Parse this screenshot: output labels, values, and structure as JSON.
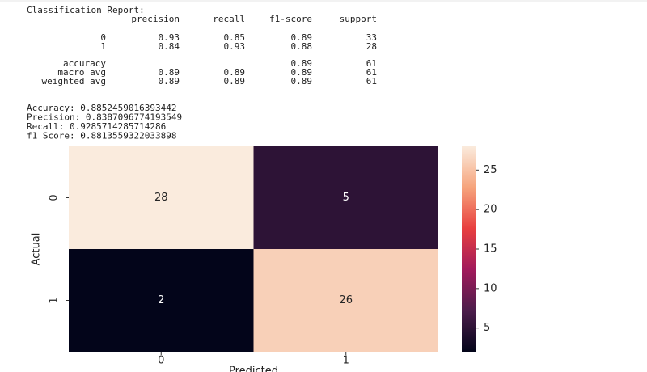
{
  "report": {
    "title": "Classification Report:",
    "columns": [
      "precision",
      "recall",
      "f1-score",
      "support"
    ],
    "rows": [
      {
        "label": "0",
        "values": [
          0.93,
          0.85,
          0.89,
          33
        ]
      },
      {
        "label": "1",
        "values": [
          0.84,
          0.93,
          0.88,
          28
        ]
      },
      {
        "label": "accuracy",
        "values": [
          null,
          null,
          0.89,
          61
        ]
      },
      {
        "label": "macro avg",
        "values": [
          0.89,
          0.89,
          0.89,
          61
        ]
      },
      {
        "label": "weighted avg",
        "values": [
          0.89,
          0.89,
          0.89,
          61
        ]
      }
    ]
  },
  "metrics": [
    {
      "label": "Accuracy:",
      "value": 0.8852459016393442
    },
    {
      "label": "Precision:",
      "value": 0.8387096774193549
    },
    {
      "label": "Recall:",
      "value": 0.9285714285714286
    },
    {
      "label": "f1 Score:",
      "value": 0.8813559322033898
    }
  ],
  "chart_data": {
    "type": "heatmap",
    "x_categories": [
      "0",
      "1"
    ],
    "y_categories": [
      "0",
      "1"
    ],
    "values": [
      [
        28,
        5
      ],
      [
        2,
        26
      ]
    ],
    "xlabel": "Predicted",
    "ylabel": "Actual",
    "clim": [
      2,
      28
    ],
    "cticks": [
      5,
      10,
      15,
      20,
      25
    ],
    "cmap_colors": [
      "#03051a",
      "#4c1d4b",
      "#a11a5b",
      "#e83f3f",
      "#f6a47c",
      "#faebdd"
    ]
  }
}
